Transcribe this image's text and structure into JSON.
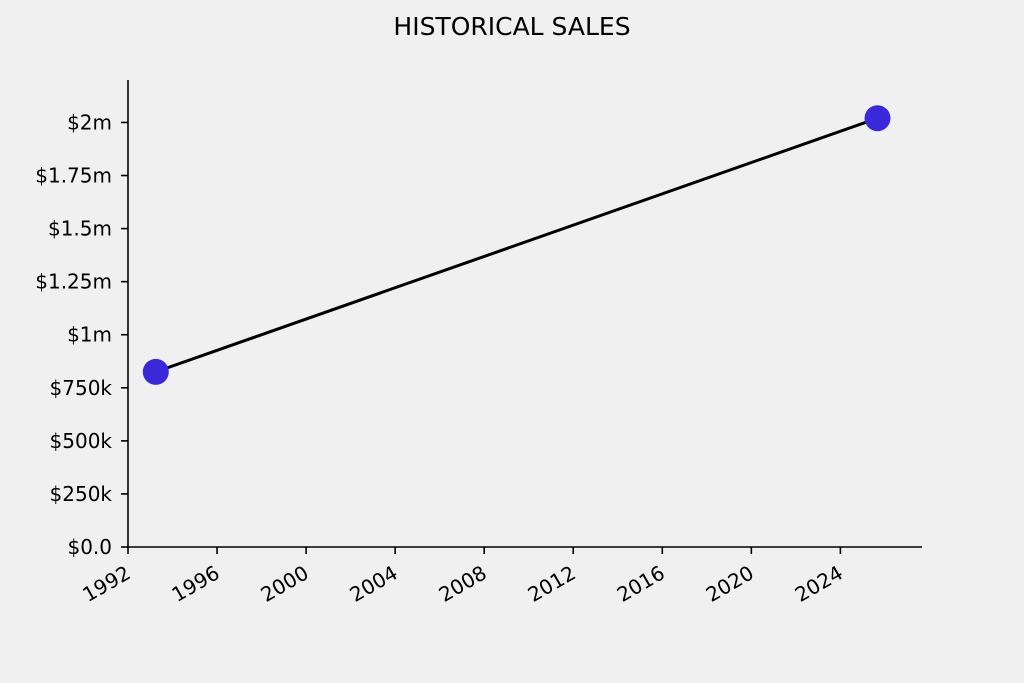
{
  "chart_data": {
    "type": "line",
    "title": "HISTORICAL SALES",
    "xlabel": "",
    "ylabel": "",
    "x_axis_type": "date",
    "x": [
      "1993-04-01",
      "2025-09-01"
    ],
    "series": [
      {
        "values": [
          825000,
          2020000
        ]
      }
    ],
    "xlim": [
      "1992-01-01",
      "2027-09-01"
    ],
    "ylim": [
      0,
      2200000
    ],
    "x_ticks": [
      "1992",
      "1996",
      "2000",
      "2004",
      "2008",
      "2012",
      "2016",
      "2020",
      "2024"
    ],
    "y_ticks": [
      {
        "value": 0,
        "label": "$0.0"
      },
      {
        "value": 250000,
        "label": "$250k"
      },
      {
        "value": 500000,
        "label": "$500k"
      },
      {
        "value": 750000,
        "label": "$750k"
      },
      {
        "value": 1000000,
        "label": "$1m"
      },
      {
        "value": 1250000,
        "label": "$1.25m"
      },
      {
        "value": 1500000,
        "label": "$1.5m"
      },
      {
        "value": 1750000,
        "label": "$1.75m"
      },
      {
        "value": 2000000,
        "label": "$2m"
      }
    ],
    "grid": false,
    "legend": "none",
    "colors": {
      "line": "#000000",
      "marker": "#3b28d8",
      "background": "#f0f0f0"
    }
  }
}
